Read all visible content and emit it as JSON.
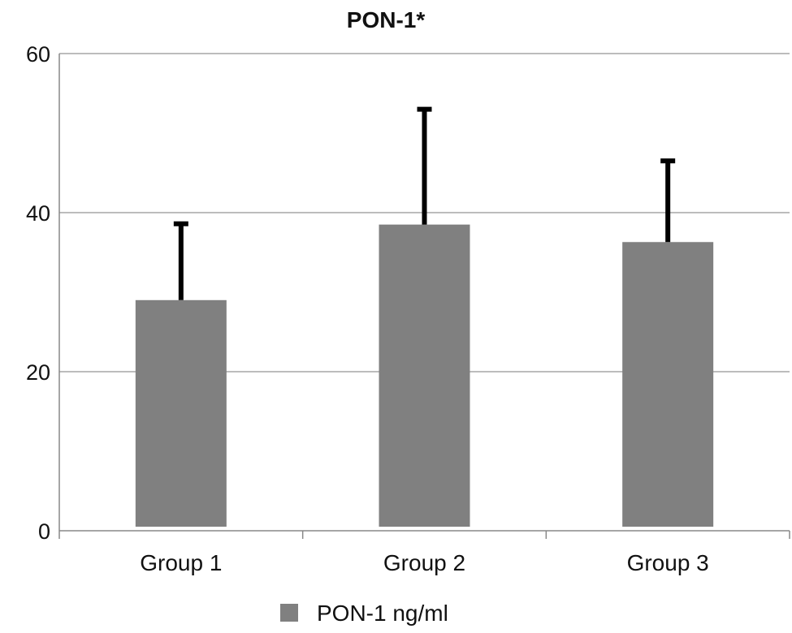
{
  "chart_data": {
    "type": "bar",
    "title": "PON-1*",
    "xlabel": "",
    "ylabel": "",
    "categories": [
      "Group 1",
      "Group 2",
      "Group 3"
    ],
    "series": [
      {
        "name": "PON-1 ng/ml",
        "values": [
          29,
          38.5,
          36.3
        ],
        "error_upper": [
          38.6,
          53,
          46.5
        ]
      }
    ],
    "ylim": [
      0,
      60
    ],
    "yticks": [
      "0",
      "20",
      "40",
      "60"
    ],
    "grid": true,
    "legend": "bottom",
    "colors": {
      "bar": "#808080",
      "error": "#000000",
      "grid": "#a6a6a6",
      "axis": "#888888"
    }
  }
}
